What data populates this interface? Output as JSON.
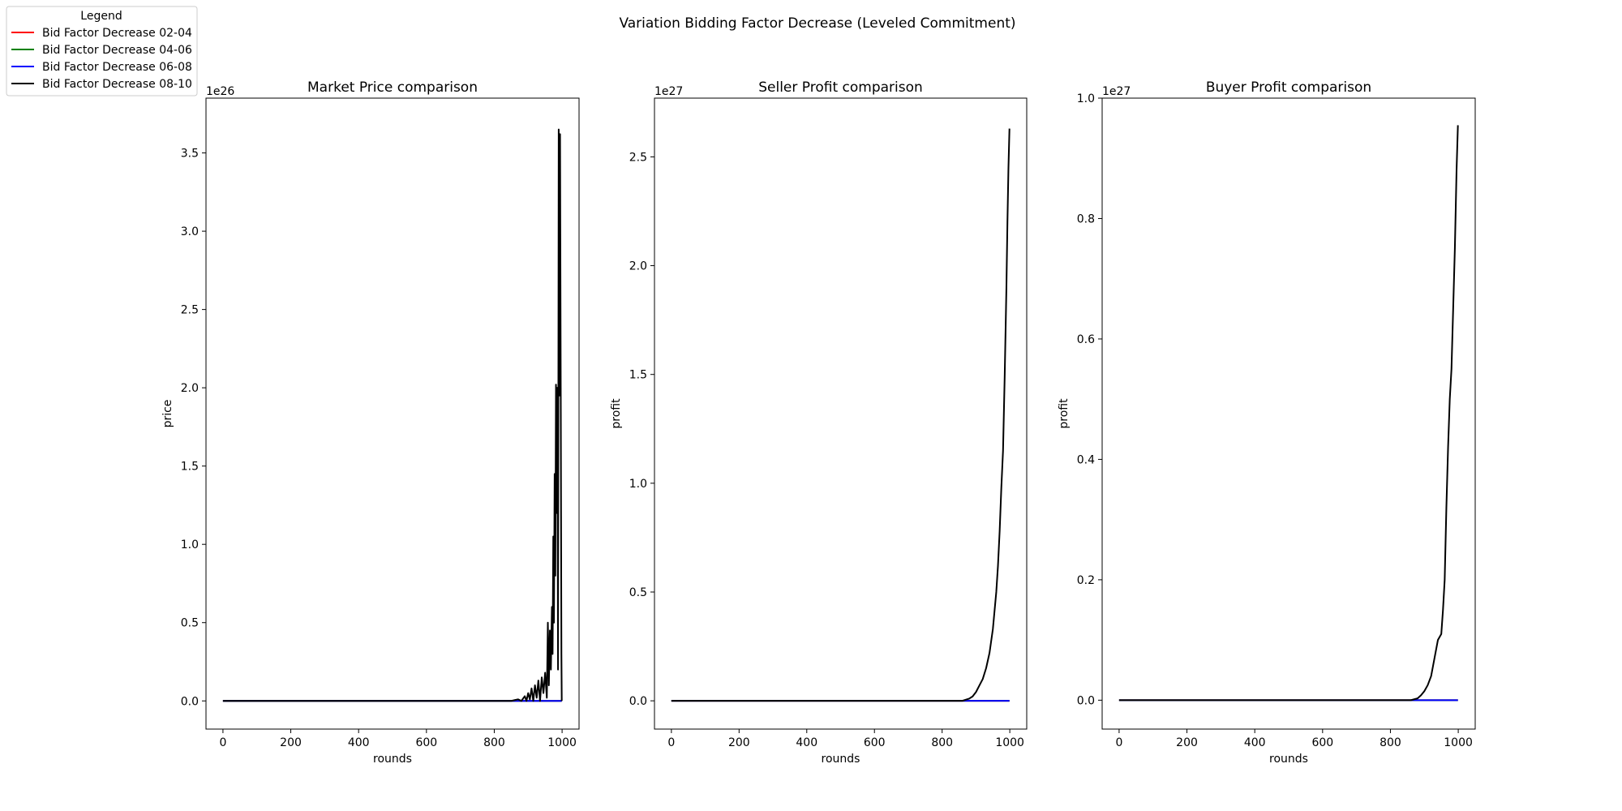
{
  "figure": {
    "suptitle": "Variation Bidding Factor Decrease (Leveled Commitment)"
  },
  "legend": {
    "title": "Legend",
    "placement": "top-left",
    "entries": [
      {
        "label": "Bid Factor Decrease 02-04",
        "color": "#ff0000"
      },
      {
        "label": "Bid Factor Decrease 04-06",
        "color": "#008000"
      },
      {
        "label": "Bid Factor Decrease 06-08",
        "color": "#0000ff"
      },
      {
        "label": "Bid Factor Decrease 08-10",
        "color": "#000000"
      }
    ]
  },
  "chart_data": [
    {
      "type": "line",
      "title": "Market Price comparison",
      "xlabel": "rounds",
      "ylabel": "price",
      "offset_text": "1e26",
      "xlim": [
        -50,
        1050
      ],
      "ylim": [
        -0.18,
        3.85
      ],
      "xticks": [
        0,
        200,
        400,
        600,
        800,
        1000
      ],
      "yticks": [
        0.0,
        0.5,
        1.0,
        1.5,
        2.0,
        2.5,
        3.0,
        3.5
      ],
      "ytick_labels": [
        "0.0",
        "0.5",
        "1.0",
        "1.5",
        "2.0",
        "2.5",
        "3.0",
        "3.5"
      ],
      "grid": false,
      "series": [
        {
          "name": "Bid Factor Decrease 02-04",
          "color": "#ff0000",
          "x": [
            0,
            999
          ],
          "y": [
            0,
            0
          ]
        },
        {
          "name": "Bid Factor Decrease 04-06",
          "color": "#008000",
          "x": [
            0,
            999
          ],
          "y": [
            0,
            0
          ]
        },
        {
          "name": "Bid Factor Decrease 06-08",
          "color": "#0000ff",
          "x": [
            0,
            999
          ],
          "y": [
            0,
            0
          ]
        },
        {
          "name": "Bid Factor Decrease 08-10",
          "color": "#000000",
          "x": [
            0,
            850,
            870,
            880,
            890,
            895,
            900,
            905,
            910,
            915,
            920,
            925,
            930,
            935,
            940,
            945,
            950,
            955,
            958,
            961,
            964,
            967,
            970,
            972,
            974,
            976,
            978,
            980,
            982,
            984,
            986,
            988,
            990,
            992,
            994,
            996,
            998,
            999
          ],
          "y": [
            0,
            0,
            0.01,
            0.0,
            0.03,
            0.0,
            0.05,
            0.01,
            0.08,
            0.0,
            0.1,
            0.02,
            0.13,
            0.0,
            0.15,
            0.05,
            0.18,
            0.02,
            0.5,
            0.1,
            0.45,
            0.2,
            0.6,
            0.3,
            1.05,
            0.5,
            1.45,
            0.8,
            2.02,
            1.2,
            2.0,
            0.2,
            3.65,
            1.95,
            3.62,
            2.0,
            0.3,
            0.0
          ]
        }
      ]
    },
    {
      "type": "line",
      "title": "Seller Profit comparison",
      "xlabel": "rounds",
      "ylabel": "profit",
      "offset_text": "1e27",
      "xlim": [
        -50,
        1050
      ],
      "ylim": [
        -0.13,
        2.77
      ],
      "xticks": [
        0,
        200,
        400,
        600,
        800,
        1000
      ],
      "yticks": [
        0.0,
        0.5,
        1.0,
        1.5,
        2.0,
        2.5
      ],
      "ytick_labels": [
        "0.0",
        "0.5",
        "1.0",
        "1.5",
        "2.0",
        "2.5"
      ],
      "grid": false,
      "series": [
        {
          "name": "Bid Factor Decrease 02-04",
          "color": "#ff0000",
          "x": [
            0,
            999
          ],
          "y": [
            0,
            0
          ]
        },
        {
          "name": "Bid Factor Decrease 04-06",
          "color": "#008000",
          "x": [
            0,
            999
          ],
          "y": [
            0,
            0
          ]
        },
        {
          "name": "Bid Factor Decrease 06-08",
          "color": "#0000ff",
          "x": [
            0,
            999
          ],
          "y": [
            0,
            0
          ]
        },
        {
          "name": "Bid Factor Decrease 08-10",
          "color": "#000000",
          "x": [
            0,
            860,
            880,
            890,
            900,
            910,
            920,
            930,
            940,
            950,
            960,
            965,
            970,
            975,
            980,
            985,
            990,
            993,
            996,
            999
          ],
          "y": [
            0,
            0,
            0.01,
            0.02,
            0.04,
            0.07,
            0.1,
            0.15,
            0.22,
            0.33,
            0.5,
            0.62,
            0.78,
            0.98,
            1.15,
            1.5,
            1.9,
            2.2,
            2.45,
            2.63
          ]
        }
      ]
    },
    {
      "type": "line",
      "title": "Buyer Profit comparison",
      "xlabel": "rounds",
      "ylabel": "profit",
      "offset_text": "1e27",
      "xlim": [
        -50,
        1050
      ],
      "ylim": [
        -0.048,
        1.0
      ],
      "xticks": [
        0,
        200,
        400,
        600,
        800,
        1000
      ],
      "yticks": [
        0.0,
        0.2,
        0.4,
        0.6,
        0.8,
        1.0
      ],
      "ytick_labels": [
        "0.0",
        "0.2",
        "0.4",
        "0.6",
        "0.8",
        "1.0"
      ],
      "grid": false,
      "series": [
        {
          "name": "Bid Factor Decrease 02-04",
          "color": "#ff0000",
          "x": [
            0,
            999
          ],
          "y": [
            0,
            0
          ]
        },
        {
          "name": "Bid Factor Decrease 04-06",
          "color": "#008000",
          "x": [
            0,
            999
          ],
          "y": [
            0,
            0
          ]
        },
        {
          "name": "Bid Factor Decrease 06-08",
          "color": "#0000ff",
          "x": [
            0,
            999
          ],
          "y": [
            0,
            0
          ]
        },
        {
          "name": "Bid Factor Decrease 08-10",
          "color": "#000000",
          "x": [
            0,
            860,
            880,
            890,
            900,
            910,
            920,
            930,
            940,
            950,
            955,
            960,
            965,
            970,
            975,
            980,
            985,
            990,
            995,
            999
          ],
          "y": [
            0,
            0,
            0.003,
            0.008,
            0.015,
            0.025,
            0.04,
            0.07,
            0.1,
            0.11,
            0.15,
            0.2,
            0.32,
            0.42,
            0.5,
            0.55,
            0.65,
            0.75,
            0.88,
            0.955
          ]
        }
      ]
    }
  ]
}
